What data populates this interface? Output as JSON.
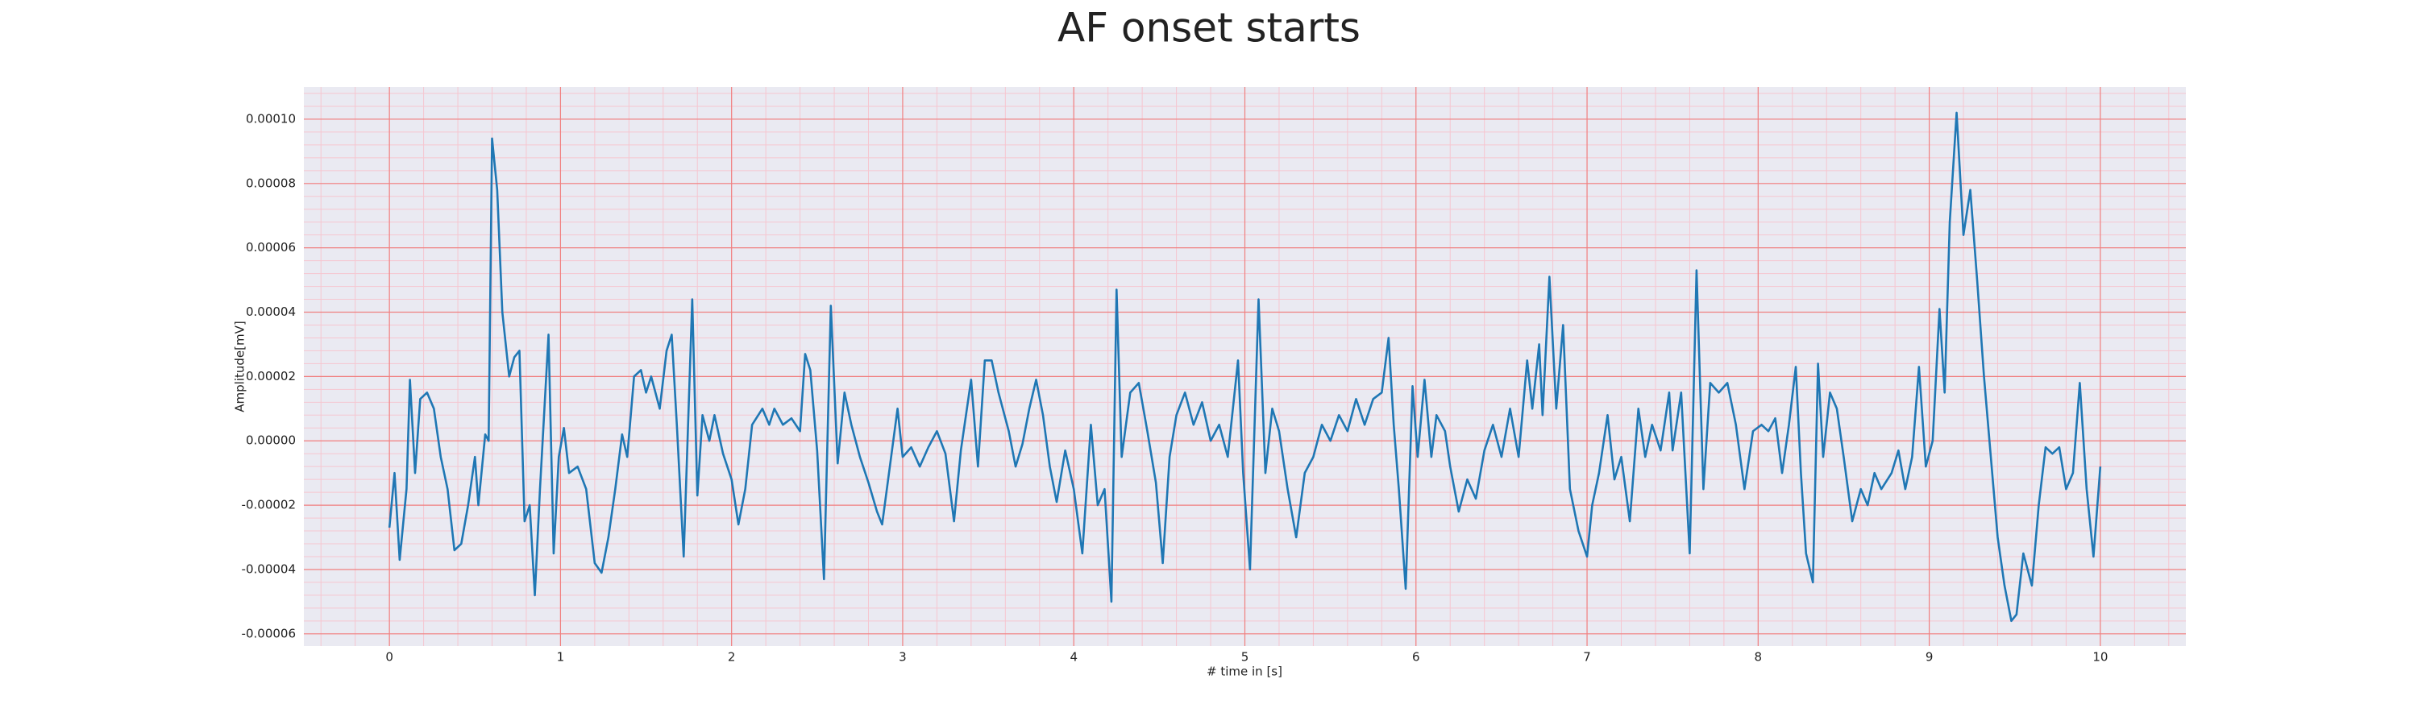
{
  "chart_data": {
    "type": "line",
    "title": "AF onset starts",
    "xlabel": "# time in [s]",
    "ylabel": "Amplitude[mV]",
    "color": "#1f77b4",
    "background": "#eaeaf2",
    "grid": true,
    "grid_color": "#f08080",
    "minor_grid": true,
    "minor_grid_color": "#f6c6d0",
    "xlim": [
      -0.5,
      10.5
    ],
    "xticks": [
      0,
      1,
      2,
      3,
      4,
      5,
      6,
      7,
      8,
      9,
      10
    ],
    "ylim": [
      -6.38e-05,
      0.00011
    ],
    "yticks": [
      {
        "value": -6e-05,
        "label": "-0.00006"
      },
      {
        "value": -4e-05,
        "label": "-0.00004"
      },
      {
        "value": -2e-05,
        "label": "-0.00002"
      },
      {
        "value": 0,
        "label": "0.00000"
      },
      {
        "value": 2e-05,
        "label": "0.00002"
      },
      {
        "value": 4e-05,
        "label": "0.00004"
      },
      {
        "value": 6e-05,
        "label": "0.00006"
      },
      {
        "value": 8e-05,
        "label": "0.00008"
      },
      {
        "value": 0.0001,
        "label": "0.00010"
      }
    ],
    "x": [
      0,
      0.03,
      0.06,
      0.1,
      0.12,
      0.15,
      0.18,
      0.22,
      0.26,
      0.3,
      0.34,
      0.38,
      0.42,
      0.46,
      0.5,
      0.52,
      0.56,
      0.58,
      0.6,
      0.63,
      0.66,
      0.7,
      0.73,
      0.76,
      0.79,
      0.82,
      0.85,
      0.88,
      0.93,
      0.96,
      0.99,
      1.02,
      1.05,
      1.1,
      1.15,
      1.2,
      1.24,
      1.28,
      1.32,
      1.36,
      1.39,
      1.43,
      1.47,
      1.5,
      1.53,
      1.58,
      1.62,
      1.65,
      1.68,
      1.72,
      1.77,
      1.8,
      1.83,
      1.87,
      1.9,
      1.95,
      2.0,
      2.04,
      2.08,
      2.12,
      2.18,
      2.22,
      2.25,
      2.3,
      2.35,
      2.4,
      2.43,
      2.46,
      2.5,
      2.54,
      2.58,
      2.62,
      2.66,
      2.7,
      2.75,
      2.8,
      2.85,
      2.88,
      2.92,
      2.97,
      3.0,
      3.05,
      3.1,
      3.15,
      3.2,
      3.25,
      3.3,
      3.34,
      3.4,
      3.44,
      3.48,
      3.52,
      3.56,
      3.62,
      3.66,
      3.7,
      3.74,
      3.78,
      3.82,
      3.86,
      3.9,
      3.95,
      4.0,
      4.05,
      4.1,
      4.14,
      4.18,
      4.22,
      4.25,
      4.28,
      4.33,
      4.38,
      4.43,
      4.48,
      4.52,
      4.56,
      4.6,
      4.65,
      4.7,
      4.75,
      4.8,
      4.85,
      4.9,
      4.96,
      4.99,
      5.03,
      5.08,
      5.12,
      5.16,
      5.2,
      5.25,
      5.3,
      5.35,
      5.4,
      5.45,
      5.5,
      5.55,
      5.6,
      5.65,
      5.7,
      5.75,
      5.8,
      5.84,
      5.87,
      5.9,
      5.94,
      5.98,
      6.01,
      6.05,
      6.09,
      6.12,
      6.17,
      6.2,
      6.25,
      6.3,
      6.35,
      6.4,
      6.45,
      6.5,
      6.55,
      6.6,
      6.65,
      6.68,
      6.72,
      6.74,
      6.78,
      6.82,
      6.86,
      6.9,
      6.95,
      7.0,
      7.03,
      7.07,
      7.12,
      7.16,
      7.2,
      7.25,
      7.3,
      7.34,
      7.38,
      7.43,
      7.48,
      7.5,
      7.55,
      7.6,
      7.64,
      7.68,
      7.72,
      7.77,
      7.82,
      7.87,
      7.92,
      7.97,
      8.02,
      8.06,
      8.1,
      8.14,
      8.18,
      8.22,
      8.25,
      8.28,
      8.32,
      8.35,
      8.38,
      8.42,
      8.46,
      8.5,
      8.55,
      8.6,
      8.64,
      8.68,
      8.72,
      8.78,
      8.82,
      8.86,
      8.9,
      8.94,
      8.98,
      9.02,
      9.06,
      9.09,
      9.12,
      9.16,
      9.2,
      9.24,
      9.28,
      9.32,
      9.36,
      9.4,
      9.44,
      9.48,
      9.51,
      9.55,
      9.6,
      9.64,
      9.68,
      9.72,
      9.76,
      9.8,
      9.84,
      9.88,
      9.92,
      9.96,
      10.0
    ],
    "values": [
      -2.7e-05,
      -1e-05,
      -3.7e-05,
      -1.5e-05,
      1.9e-05,
      -1e-05,
      1.3e-05,
      1.5e-05,
      1e-05,
      -5e-06,
      -1.5e-05,
      -3.4e-05,
      -3.2e-05,
      -2e-05,
      -5e-06,
      -2e-05,
      2e-06,
      0,
      9.4e-05,
      7.8e-05,
      4e-05,
      2e-05,
      2.6e-05,
      2.8e-05,
      -2.5e-05,
      -2e-05,
      -4.8e-05,
      -1.5e-05,
      3.3e-05,
      -3.5e-05,
      -5e-06,
      4e-06,
      -1e-05,
      -8e-06,
      -1.5e-05,
      -3.8e-05,
      -4.1e-05,
      -3e-05,
      -1.5e-05,
      2e-06,
      -5e-06,
      2e-05,
      2.2e-05,
      1.5e-05,
      2e-05,
      1e-05,
      2.8e-05,
      3.3e-05,
      5e-06,
      -3.6e-05,
      4.4e-05,
      -1.7e-05,
      8e-06,
      0,
      8e-06,
      -4e-06,
      -1.2e-05,
      -2.6e-05,
      -1.5e-05,
      5e-06,
      1e-05,
      5e-06,
      1e-05,
      5e-06,
      7e-06,
      3e-06,
      2.7e-05,
      2.2e-05,
      -3e-06,
      -4.3e-05,
      4.2e-05,
      -7e-06,
      1.5e-05,
      5e-06,
      -5e-06,
      -1.3e-05,
      -2.2e-05,
      -2.6e-05,
      -1e-05,
      1e-05,
      -5e-06,
      -2e-06,
      -8e-06,
      -2e-06,
      3e-06,
      -4e-06,
      -2.5e-05,
      -3e-06,
      1.9e-05,
      -8e-06,
      2.5e-05,
      2.5e-05,
      1.5e-05,
      3e-06,
      -8e-06,
      -1e-06,
      1e-05,
      1.9e-05,
      8e-06,
      -8e-06,
      -1.9e-05,
      -3e-06,
      -1.5e-05,
      -3.5e-05,
      5e-06,
      -2e-05,
      -1.5e-05,
      -5e-05,
      4.7e-05,
      -5e-06,
      1.5e-05,
      1.8e-05,
      3e-06,
      -1.3e-05,
      -3.8e-05,
      -5e-06,
      8e-06,
      1.5e-05,
      5e-06,
      1.2e-05,
      0,
      5e-06,
      -5e-06,
      2.5e-05,
      -1e-05,
      -4e-05,
      4.4e-05,
      -1e-05,
      1e-05,
      3e-06,
      -1.5e-05,
      -3e-05,
      -1e-05,
      -5e-06,
      5e-06,
      0,
      8e-06,
      3e-06,
      1.3e-05,
      5e-06,
      1.3e-05,
      1.5e-05,
      3.2e-05,
      5e-06,
      -1.5e-05,
      -4.6e-05,
      1.7e-05,
      -5e-06,
      1.9e-05,
      -5e-06,
      8e-06,
      3e-06,
      -8e-06,
      -2.2e-05,
      -1.2e-05,
      -1.8e-05,
      -3e-06,
      5e-06,
      -5e-06,
      1e-05,
      -5e-06,
      2.5e-05,
      1e-05,
      3e-05,
      8e-06,
      5.1e-05,
      1e-05,
      3.6e-05,
      -1.5e-05,
      -2.8e-05,
      -3.6e-05,
      -2e-05,
      -1e-05,
      8e-06,
      -1.2e-05,
      -5e-06,
      -2.5e-05,
      1e-05,
      -5e-06,
      5e-06,
      -3e-06,
      1.5e-05,
      -3e-06,
      1.5e-05,
      -3.5e-05,
      5.3e-05,
      -1.5e-05,
      1.8e-05,
      1.5e-05,
      1.8e-05,
      5e-06,
      -1.5e-05,
      3e-06,
      5e-06,
      3e-06,
      7e-06,
      -1e-05,
      5e-06,
      2.3e-05,
      -1e-05,
      -3.5e-05,
      -4.4e-05,
      2.4e-05,
      -5e-06,
      1.5e-05,
      1e-05,
      -5e-06,
      -2.5e-05,
      -1.5e-05,
      -2e-05,
      -1e-05,
      -1.5e-05,
      -1e-05,
      -3e-06,
      -1.5e-05,
      -5e-06,
      2.3e-05,
      -8e-06,
      0,
      4.1e-05,
      1.5e-05,
      6.8e-05,
      0.000102,
      6.4e-05,
      7.8e-05,
      5e-05,
      2e-05,
      -5e-06,
      -3e-05,
      -4.5e-05,
      -5.6e-05,
      -5.4e-05,
      -3.5e-05,
      -4.5e-05,
      -2e-05,
      -2e-06,
      -4e-06,
      -2e-06,
      -1.5e-05,
      -1e-05,
      1.8e-05,
      -1.5e-05,
      -3.6e-05,
      -8e-06
    ]
  }
}
